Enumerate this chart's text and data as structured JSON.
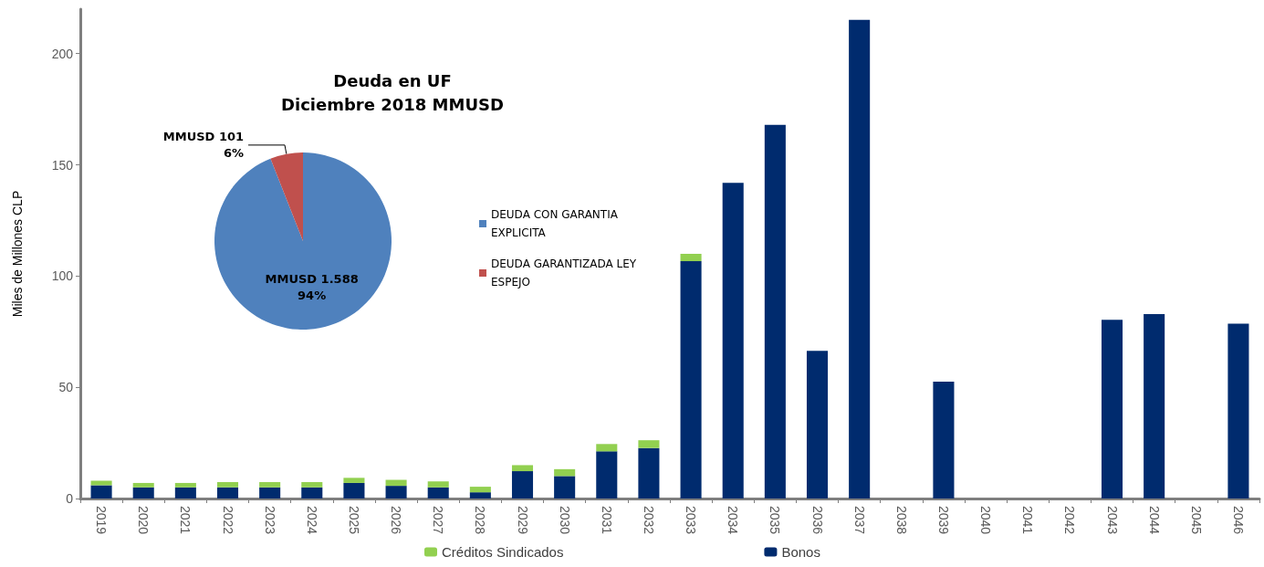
{
  "chart_data": [
    {
      "type": "bar",
      "ylabel": "Miles de Millones CLP",
      "stacked": true,
      "legend": "bottom",
      "grid": false,
      "categories": [
        "2019",
        "2020",
        "2021",
        "2022",
        "2023",
        "2024",
        "2025",
        "2026",
        "2027",
        "2028",
        "2029",
        "2030",
        "2031",
        "2032",
        "2033",
        "2034",
        "2035",
        "2036",
        "2037",
        "2038",
        "2039",
        "2040",
        "2041",
        "2042",
        "2043",
        "2044",
        "2045",
        "2046"
      ],
      "ylim": [
        0,
        220
      ],
      "yticks": [
        0,
        50,
        100,
        150,
        200
      ],
      "series": [
        {
          "name": "Bonos",
          "color": "#002b6e",
          "values": [
            6.0,
            5.0,
            5.0,
            5.0,
            5.0,
            5.0,
            7.0,
            5.7,
            5.0,
            2.8,
            12.3,
            10.1,
            21.2,
            22.7,
            106.7,
            141.9,
            168.0,
            66.4,
            215.2,
            0,
            52.5,
            0,
            0,
            0,
            80.3,
            82.9,
            0,
            78.6
          ]
        },
        {
          "name": "Créditos Sindicados",
          "color": "#92d050",
          "values": [
            2.0,
            2.0,
            2.0,
            2.4,
            2.4,
            2.4,
            2.3,
            2.7,
            2.7,
            2.5,
            2.7,
            3.1,
            3.3,
            3.5,
            3.3,
            0,
            0,
            0,
            0,
            0,
            0,
            0,
            0,
            0,
            0,
            0,
            0,
            0
          ]
        }
      ]
    },
    {
      "type": "pie",
      "title": "Deuda en UF\nDiciembre 2018 MMUSD",
      "legend": "right",
      "categories": [
        "DEUDA CON GARANTIA EXPLICITA",
        "DEUDA GARANTIZADA LEY ESPEJO"
      ],
      "values": [
        1588,
        101
      ],
      "colors": [
        "#4f81bd",
        "#c0504d"
      ],
      "value_labels": [
        "MMUSD 1.588\n94%",
        "MMUSD 101\n6%"
      ]
    }
  ]
}
